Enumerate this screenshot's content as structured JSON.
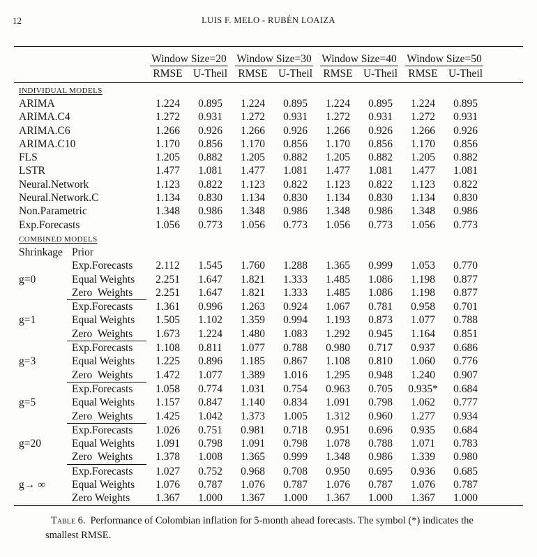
{
  "page": {
    "number": "12",
    "running_head": "LUIS F. MELO - RUBÉN LOAIZA"
  },
  "table": {
    "window_groups": [
      "Window Size=20",
      "Window Size=30",
      "Window Size=40",
      "Window Size=50"
    ],
    "metrics": [
      "RMSE",
      "U-Theil"
    ],
    "individual_label": "INDIVIDUAL MODELS",
    "combined_label": "COMBINED MODELS",
    "shrinkage_header": "Shrinkage",
    "prior_header": "Prior",
    "individual_rows": [
      {
        "name": "ARIMA",
        "values": [
          "1.224",
          "0.895",
          "1.224",
          "0.895",
          "1.224",
          "0.895",
          "1.224",
          "0.895"
        ]
      },
      {
        "name": "ARIMA.C4",
        "values": [
          "1.272",
          "0.931",
          "1.272",
          "0.931",
          "1.272",
          "0.931",
          "1.272",
          "0.931"
        ]
      },
      {
        "name": "ARIMA.C6",
        "values": [
          "1.266",
          "0.926",
          "1.266",
          "0.926",
          "1.266",
          "0.926",
          "1.266",
          "0.926"
        ]
      },
      {
        "name": "ARIMA.C10",
        "values": [
          "1.170",
          "0.856",
          "1.170",
          "0.856",
          "1.170",
          "0.856",
          "1.170",
          "0.856"
        ]
      },
      {
        "name": "FLS",
        "values": [
          "1.205",
          "0.882",
          "1.205",
          "0.882",
          "1.205",
          "0.882",
          "1.205",
          "0.882"
        ]
      },
      {
        "name": "LSTR",
        "values": [
          "1.477",
          "1.081",
          "1.477",
          "1.081",
          "1.477",
          "1.081",
          "1.477",
          "1.081"
        ]
      },
      {
        "name": "Neural.Network",
        "values": [
          "1.123",
          "0.822",
          "1.123",
          "0.822",
          "1.123",
          "0.822",
          "1.123",
          "0.822"
        ]
      },
      {
        "name": "Neural.Network.C",
        "values": [
          "1.134",
          "0.830",
          "1.134",
          "0.830",
          "1.134",
          "0.830",
          "1.134",
          "0.830"
        ]
      },
      {
        "name": "Non.Parametric",
        "values": [
          "1.348",
          "0.986",
          "1.348",
          "0.986",
          "1.348",
          "0.986",
          "1.348",
          "0.986"
        ]
      },
      {
        "name": "Exp.Forecasts",
        "values": [
          "1.056",
          "0.773",
          "1.056",
          "0.773",
          "1.056",
          "0.773",
          "1.056",
          "0.773"
        ]
      }
    ],
    "combined_groups": [
      {
        "shrinkage": "g=0",
        "rows": [
          {
            "prior": "Exp.Forecasts",
            "values": [
              "2.112",
              "1.545",
              "1.760",
              "1.288",
              "1.365",
              "0.999",
              "1.053",
              "0.770"
            ]
          },
          {
            "prior": "Equal Weights",
            "values": [
              "2.251",
              "1.647",
              "1.821",
              "1.333",
              "1.485",
              "1.086",
              "1.198",
              "0.877"
            ]
          },
          {
            "prior": "Zero Weights",
            "values": [
              "2.251",
              "1.647",
              "1.821",
              "1.333",
              "1.485",
              "1.086",
              "1.198",
              "0.877"
            ]
          }
        ]
      },
      {
        "shrinkage": "g=1",
        "rows": [
          {
            "prior": "Exp.Forecasts",
            "values": [
              "1.361",
              "0.996",
              "1.263",
              "0.924",
              "1.067",
              "0.781",
              "0.958",
              "0.701"
            ]
          },
          {
            "prior": "Equal Weights",
            "values": [
              "1.505",
              "1.102",
              "1.359",
              "0.994",
              "1.193",
              "0.873",
              "1.077",
              "0.788"
            ]
          },
          {
            "prior": "Zero Weights",
            "values": [
              "1.673",
              "1.224",
              "1.480",
              "1.083",
              "1.292",
              "0.945",
              "1.164",
              "0.851"
            ]
          }
        ]
      },
      {
        "shrinkage": "g=3",
        "rows": [
          {
            "prior": "Exp.Forecasts",
            "values": [
              "1.108",
              "0.811",
              "1.077",
              "0.788",
              "0.980",
              "0.717",
              "0.937",
              "0.686"
            ]
          },
          {
            "prior": "Equal Weights",
            "values": [
              "1.225",
              "0.896",
              "1.185",
              "0.867",
              "1.108",
              "0.810",
              "1.060",
              "0.776"
            ]
          },
          {
            "prior": "Zero Weights",
            "values": [
              "1.472",
              "1.077",
              "1.389",
              "1.016",
              "1.295",
              "0.948",
              "1.240",
              "0.907"
            ]
          }
        ]
      },
      {
        "shrinkage": "g=5",
        "rows": [
          {
            "prior": "Exp.Forecasts",
            "values": [
              "1.058",
              "0.774",
              "1.031",
              "0.754",
              "0.963",
              "0.705",
              "0.935*",
              "0.684"
            ]
          },
          {
            "prior": "Equal Weights",
            "values": [
              "1.157",
              "0.847",
              "1.140",
              "0.834",
              "1.091",
              "0.798",
              "1.062",
              "0.777"
            ]
          },
          {
            "prior": "Zero Weights",
            "values": [
              "1.425",
              "1.042",
              "1.373",
              "1.005",
              "1.312",
              "0.960",
              "1.277",
              "0.934"
            ]
          }
        ]
      },
      {
        "shrinkage": "g=20",
        "rows": [
          {
            "prior": "Exp.Forecasts",
            "values": [
              "1.026",
              "0.751",
              "0.981",
              "0.718",
              "0.951",
              "0.696",
              "0.935",
              "0.684"
            ]
          },
          {
            "prior": "Equal Weights",
            "values": [
              "1.091",
              "0.798",
              "1.091",
              "0.798",
              "1.078",
              "0.788",
              "1.071",
              "0.783"
            ]
          },
          {
            "prior": "Zero Weights",
            "values": [
              "1.378",
              "1.008",
              "1.365",
              "0.999",
              "1.348",
              "0.986",
              "1.339",
              "0.980"
            ]
          }
        ]
      },
      {
        "shrinkage": "g→ ∞",
        "rows": [
          {
            "prior": "Exp.Forecasts",
            "values": [
              "1.027",
              "0.752",
              "0.968",
              "0.708",
              "0.950",
              "0.695",
              "0.936",
              "0.685"
            ]
          },
          {
            "prior": "Equal Weights",
            "values": [
              "1.076",
              "0.787",
              "1.076",
              "0.787",
              "1.076",
              "0.787",
              "1.076",
              "0.787"
            ]
          },
          {
            "prior": "Zero Weights",
            "values": [
              "1.367",
              "1.000",
              "1.367",
              "1.000",
              "1.367",
              "1.000",
              "1.367",
              "1.000"
            ]
          }
        ]
      }
    ],
    "caption_label": "Table 6.",
    "caption_text": "Performance of Colombian inflation for 5-month ahead forecasts. The symbol (*) indicates the smallest RMSE."
  }
}
